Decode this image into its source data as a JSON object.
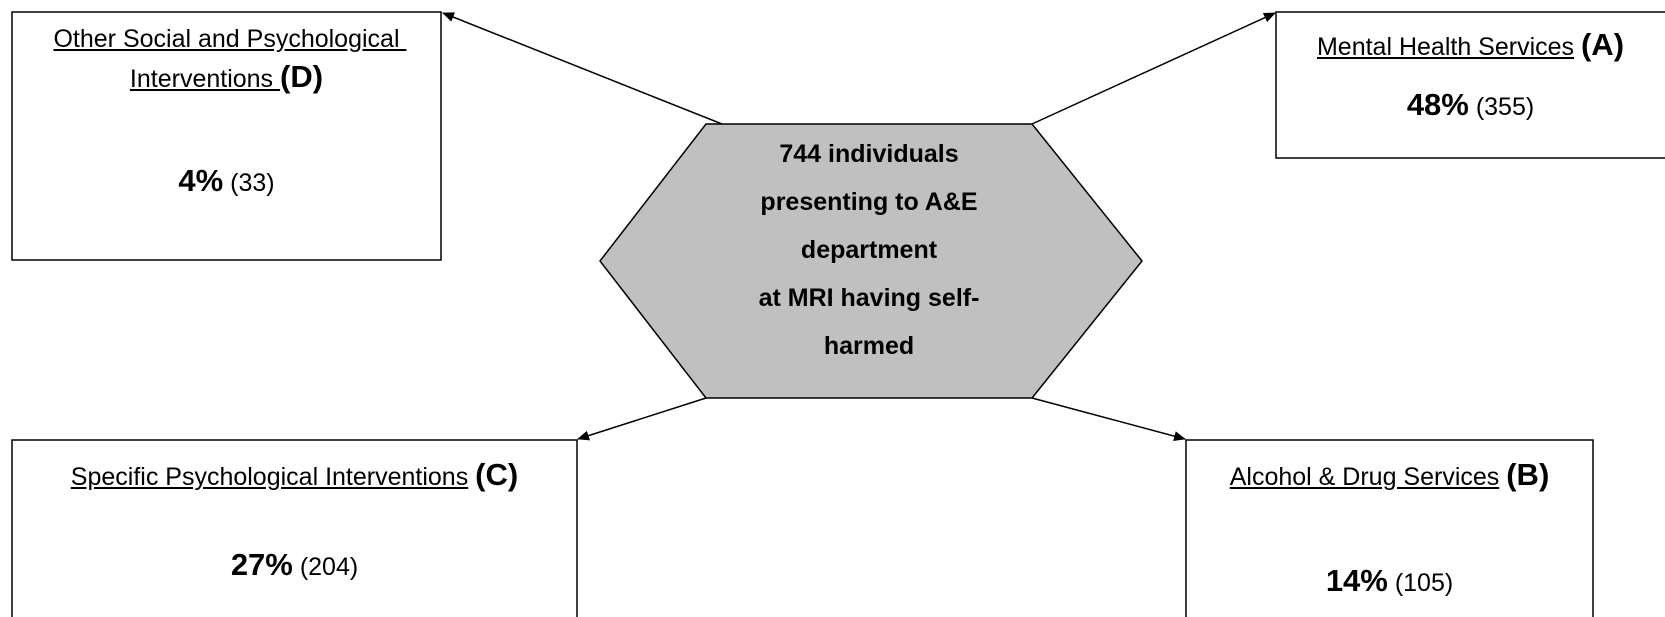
{
  "center": {
    "lines": [
      "744 individuals",
      "presenting to A&E",
      "department",
      "at MRI having self-",
      "harmed"
    ]
  },
  "nodes": [
    {
      "label": "Mental Health Services",
      "letter": "(A)",
      "percent": "48%",
      "count": "(355)"
    },
    {
      "label": "Alcohol & Drug Services",
      "letter": "(B)",
      "percent": "14%",
      "count": "(105)"
    },
    {
      "label": "Specific Psychological Interventions",
      "letter": "(C)",
      "percent": "27%",
      "count": "(204)"
    },
    {
      "label": "Other Social and Psychological Interventions ",
      "letter": "(D)",
      "percent": "4%",
      "count": "(33)"
    }
  ]
}
